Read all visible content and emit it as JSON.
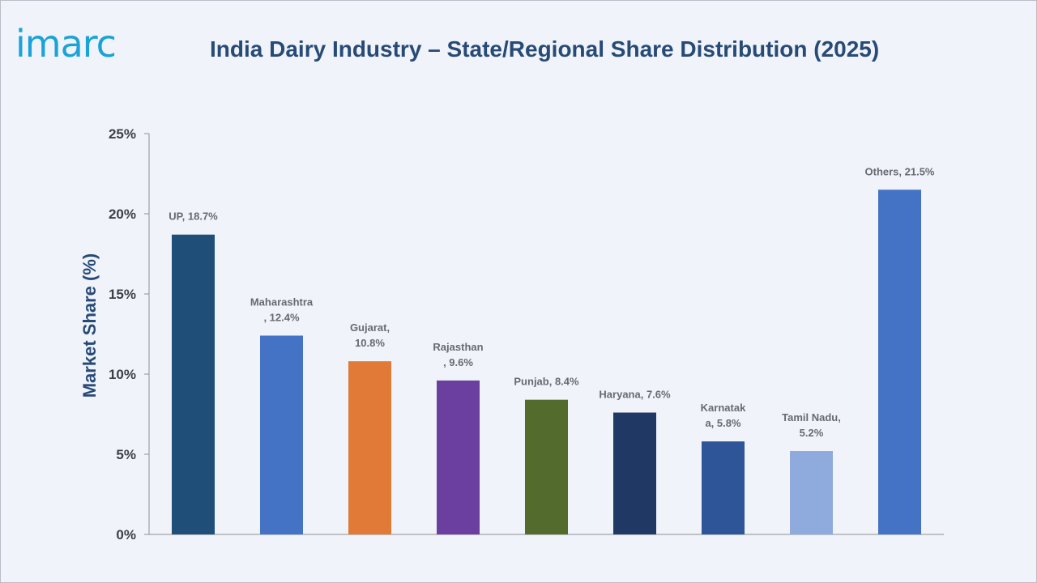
{
  "header": {
    "logo_text": "imarc",
    "title": "India Dairy Industry – State/Regional Share Distribution (2025)"
  },
  "chart_data": {
    "type": "bar",
    "title": "India Dairy Industry – State/Regional Share Distribution (2025)",
    "xlabel": "",
    "ylabel": "Market Share (%)",
    "ylim": [
      0,
      25
    ],
    "y_ticks": [
      "0%",
      "5%",
      "10%",
      "15%",
      "20%",
      "25%"
    ],
    "y_tick_values": [
      0,
      5,
      10,
      15,
      20,
      25
    ],
    "grid": false,
    "categories": [
      "UP",
      "Maharashtra",
      "Gujarat",
      "Rajasthan",
      "Punjab",
      "Haryana",
      "Karnataka",
      "Tamil Nadu",
      "Others"
    ],
    "values": [
      18.7,
      12.4,
      10.8,
      9.6,
      8.4,
      7.6,
      5.8,
      5.2,
      21.5
    ],
    "colors": [
      "#1f4e79",
      "#4472c4",
      "#e07a36",
      "#6b3fa0",
      "#546b2e",
      "#1f3864",
      "#2e5597",
      "#8faadc",
      "#4472c4"
    ],
    "data_labels": [
      [
        "UP, 18.7%"
      ],
      [
        "Maharashtra",
        ", 12.4%"
      ],
      [
        "Gujarat,",
        "10.8%"
      ],
      [
        "Rajasthan",
        ", 9.6%"
      ],
      [
        "Punjab, 8.4%"
      ],
      [
        "Haryana, 7.6%"
      ],
      [
        "Karnatak",
        "a, 5.8%"
      ],
      [
        "Tamil Nadu,",
        "5.2%"
      ],
      [
        "Others, 21.5%"
      ]
    ]
  }
}
